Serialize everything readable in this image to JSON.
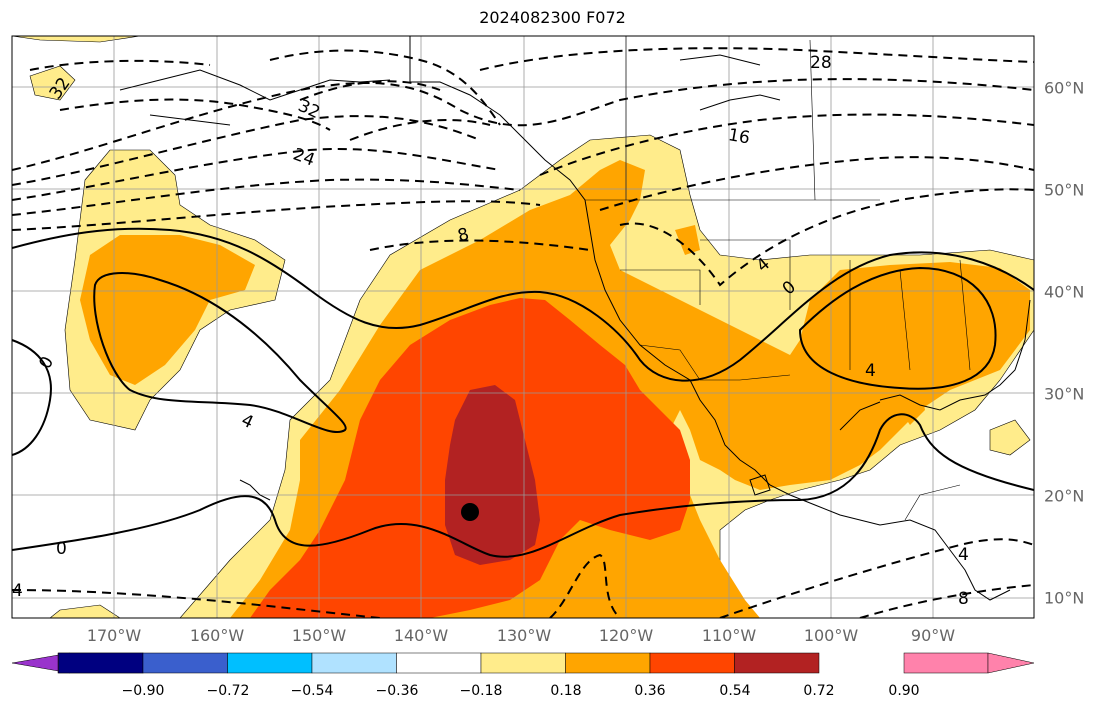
{
  "title": "2024082300 F072",
  "lon_labels": [
    "170°W",
    "160°W",
    "150°W",
    "140°W",
    "130°W",
    "120°W",
    "110°W",
    "100°W",
    "90°W"
  ],
  "lat_labels": [
    "60°N",
    "50°N",
    "40°N",
    "30°N",
    "20°N",
    "10°N"
  ],
  "contour_labels": [
    "32",
    "32",
    "28",
    "24",
    "16",
    "8",
    "4",
    "0",
    "0",
    "0",
    "4",
    "4",
    "8",
    "4",
    "4"
  ],
  "colorbar": {
    "colors": [
      "#9933cc",
      "#000080",
      "#3a5fcd",
      "#00bfff",
      "#b0e2ff",
      "#ffffff",
      "#ffec8b",
      "#ffa500",
      "#ff4500",
      "#b22222",
      "#ff82ab"
    ],
    "ticks": [
      "−0.90",
      "−0.72",
      "−0.54",
      "−0.36",
      "−0.18",
      "0.18",
      "0.36",
      "0.54",
      "0.72",
      "0.90"
    ]
  },
  "marker": "storm-center-dot"
}
